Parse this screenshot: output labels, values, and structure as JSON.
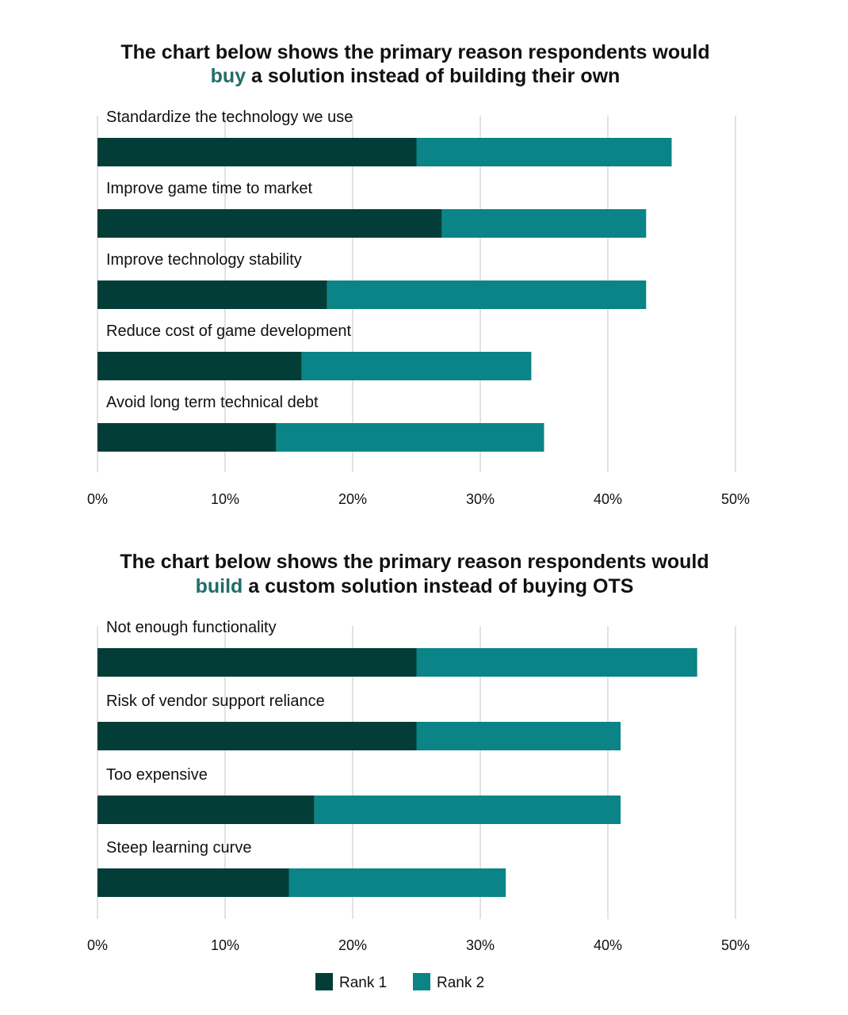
{
  "colors": {
    "rank1": "#033d37",
    "rank2": "#0a8486",
    "grid": "#d9d9d9",
    "accent": "#1f6e69"
  },
  "charts": [
    {
      "title_line1": "The chart below shows the primary reason respondents would",
      "title_line2_accent": "buy",
      "title_line2_rest": " a solution instead of building their own"
    },
    {
      "title_line1": "The chart below shows the primary reason respondents would",
      "title_line2_accent": "build",
      "title_line2_rest": " a custom solution instead of buying OTS"
    }
  ],
  "legend": {
    "rank1": "Rank 1",
    "rank2": "Rank 2"
  },
  "chart_data": [
    {
      "type": "bar",
      "orientation": "horizontal",
      "stacked": true,
      "title": "The chart below shows the primary reason respondents would buy a solution instead of building their own",
      "categories": [
        "Standardize the technology we use",
        "Improve game time to market",
        "Improve technology stability",
        "Reduce cost of game development",
        "Avoid long term technical debt"
      ],
      "series": [
        {
          "name": "Rank 1",
          "values": [
            25,
            27,
            18,
            16,
            14
          ]
        },
        {
          "name": "Rank 2",
          "values": [
            20,
            16,
            25,
            18,
            21
          ]
        }
      ],
      "xlim": [
        0,
        50
      ],
      "xticks": [
        "0%",
        "10%",
        "20%",
        "30%",
        "40%",
        "50%"
      ],
      "grid": "vertical",
      "legend": "bottom-center"
    },
    {
      "type": "bar",
      "orientation": "horizontal",
      "stacked": true,
      "title": "The chart below shows the primary reason respondents would build a custom solution instead of buying OTS",
      "categories": [
        "Not enough functionality",
        "Risk of vendor support reliance",
        "Too expensive",
        "Steep learning curve"
      ],
      "series": [
        {
          "name": "Rank 1",
          "values": [
            25,
            25,
            17,
            15
          ]
        },
        {
          "name": "Rank 2",
          "values": [
            22,
            16,
            24,
            17
          ]
        }
      ],
      "xlim": [
        0,
        50
      ],
      "xticks": [
        "0%",
        "10%",
        "20%",
        "30%",
        "40%",
        "50%"
      ],
      "grid": "vertical",
      "legend": "bottom-center"
    }
  ]
}
